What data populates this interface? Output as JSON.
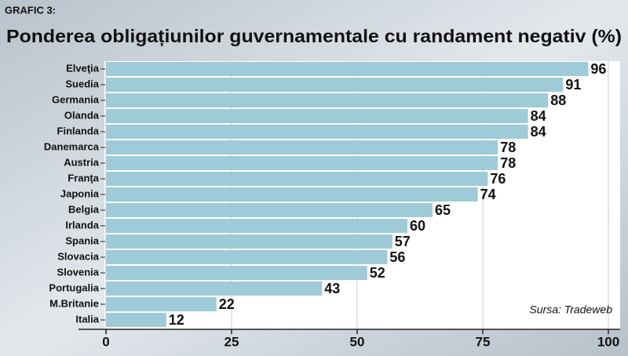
{
  "chart_data": {
    "type": "bar",
    "orientation": "horizontal",
    "label": "GRAFIC 3:",
    "title": "Ponderea obligațiunilor guvernamentale cu randament negativ (%)",
    "source": "Sursa: Tradeweb",
    "categories": [
      "Elveţia",
      "Suedia",
      "Germania",
      "Olanda",
      "Finlanda",
      "Danemarca",
      "Austria",
      "Franţa",
      "Japonia",
      "Belgia",
      "Irlanda",
      "Spania",
      "Slovacia",
      "Slovenia",
      "Portugalia",
      "M.Britanie",
      "Italia"
    ],
    "values": [
      96,
      91,
      88,
      84,
      84,
      78,
      78,
      76,
      74,
      65,
      60,
      57,
      56,
      52,
      43,
      22,
      12
    ],
    "color": "#9ecbd7",
    "xlim": [
      0,
      100
    ],
    "xticks": [
      0,
      25,
      50,
      75,
      100
    ],
    "grid": true
  }
}
